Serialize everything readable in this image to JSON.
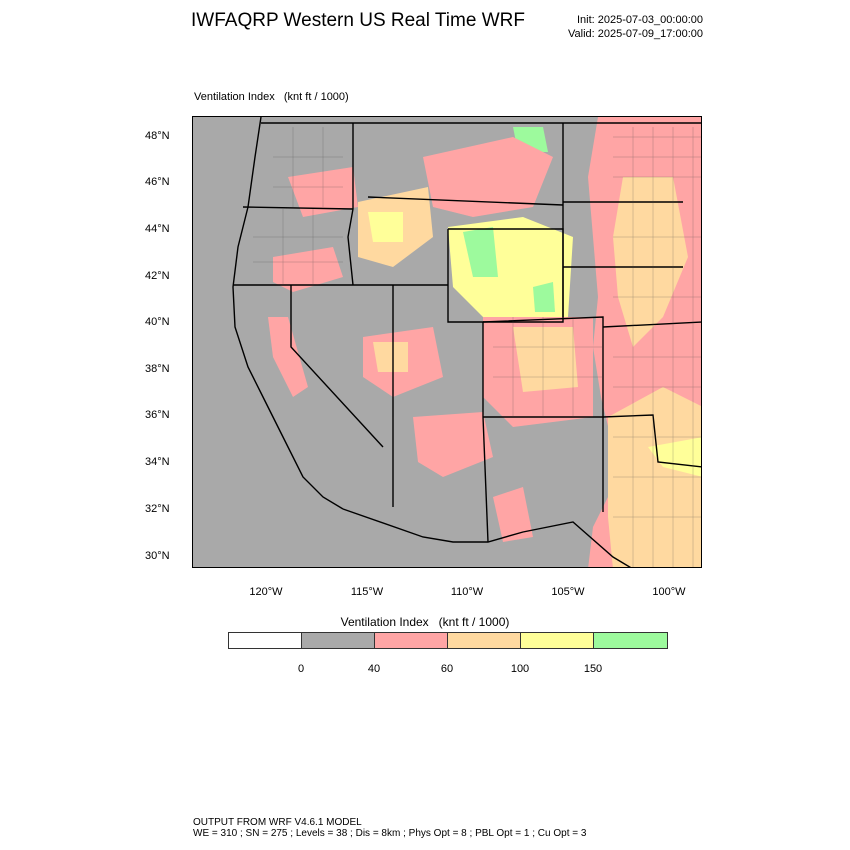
{
  "header": {
    "title": "IWFAQRP Western US Real Time WRF",
    "init": "Init: 2025-07-03_00:00:00",
    "valid": "Valid: 2025-07-09_17:00:00"
  },
  "field_label": "Ventilation Index   (knt ft / 1000)",
  "map": {
    "lat_ticks": [
      "48°N",
      "46°N",
      "44°N",
      "42°N",
      "40°N",
      "38°N",
      "36°N",
      "34°N",
      "32°N",
      "30°N"
    ],
    "lon_ticks": [
      "120°W",
      "115°W",
      "110°W",
      "105°W",
      "100°W"
    ],
    "background_color": "#a9a9a9"
  },
  "colorbar": {
    "title": "Ventilation Index   (knt ft / 1000)",
    "labels": [
      "0",
      "40",
      "60",
      "100",
      "150"
    ],
    "colors": [
      "#ffffff",
      "#a9a9a9",
      "#ffa5a5",
      "#ffd9a0",
      "#ffff99",
      "#9dfa9d"
    ]
  },
  "footer": {
    "line1": "OUTPUT FROM WRF V4.6.1 MODEL",
    "line2": "WE = 310 ; SN = 275 ; Levels = 38 ; Dis = 8km ; Phys Opt = 8 ; PBL Opt = 1 ; Cu Opt = 3"
  }
}
